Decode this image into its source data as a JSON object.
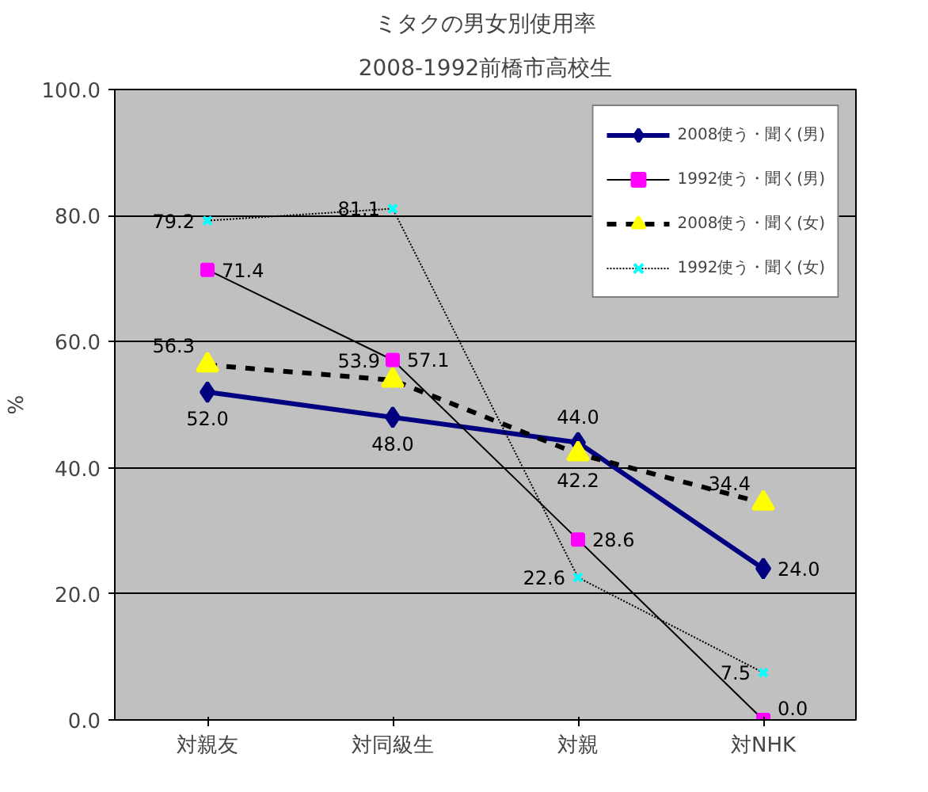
{
  "chart_data": {
    "type": "line",
    "title": "ミタクの男女別使用率",
    "subtitle": "2008-1992前橋市高校生",
    "ylabel": "%",
    "categories": [
      "対親友",
      "対同級生",
      "対親",
      "対NHK"
    ],
    "ylim": [
      0,
      100
    ],
    "yticks": [
      {
        "value": 0,
        "label": "0.0"
      },
      {
        "value": 20,
        "label": "20.0"
      },
      {
        "value": 40,
        "label": "40.0"
      },
      {
        "value": 60,
        "label": "60.0"
      },
      {
        "value": 80,
        "label": "80.0"
      },
      {
        "value": 100,
        "label": "100.0"
      }
    ],
    "grid": "y",
    "legend": "top right",
    "series": [
      {
        "name": "2008使う・聞く(男)",
        "color": "#000080",
        "marker": "diamond",
        "line_style": "solid",
        "values": [
          52.0,
          48.0,
          44.0,
          24.0
        ],
        "value_labels": [
          "52.0",
          "48.0",
          "44.0",
          "24.0"
        ]
      },
      {
        "name": "1992使う・聞く(男)",
        "color": "#000000",
        "colors": [
          "#ff00ff",
          "#ff00ff",
          "#ff00ff",
          "#ff00ff"
        ],
        "marker": "square",
        "line_style": "solid",
        "values": [
          71.4,
          57.1,
          28.6,
          0.0
        ],
        "value_labels": [
          "71.4",
          "57.1",
          "28.6",
          "0.0"
        ]
      },
      {
        "name": "2008使う・聞く(女)",
        "color": "#000000",
        "colors": [
          "#ffff00",
          "#ffff00",
          "#ffff00",
          "#ffff00"
        ],
        "marker": "triangle",
        "line_style": "dashed",
        "values": [
          56.3,
          53.9,
          42.2,
          34.4
        ],
        "value_labels": [
          "56.3",
          "53.9",
          "42.2",
          "34.4"
        ]
      },
      {
        "name": "1992使う・聞く(女)",
        "color": "#000000",
        "colors": [
          "#00ffff",
          "#00ffff",
          "#00ffff",
          "#00ffff"
        ],
        "marker": "cross",
        "line_style": "dotted",
        "values": [
          79.2,
          81.1,
          22.6,
          7.5
        ],
        "value_labels": [
          "79.2",
          "81.1",
          "22.6",
          "7.5"
        ]
      }
    ]
  }
}
